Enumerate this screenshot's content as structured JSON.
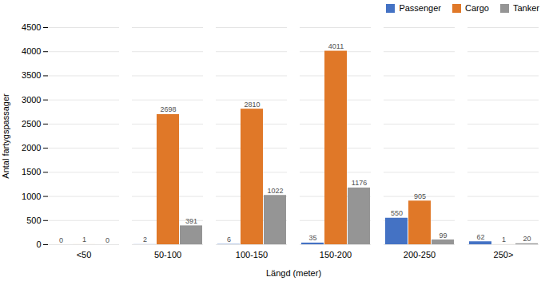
{
  "chart_data": {
    "type": "bar",
    "categories": [
      "<50",
      "50-100",
      "100-150",
      "150-200",
      "200-250",
      "250>"
    ],
    "series": [
      {
        "name": "Passenger",
        "color": "#4472c4",
        "values": [
          0,
          2,
          6,
          35,
          550,
          62
        ]
      },
      {
        "name": "Cargo",
        "color": "#e07828",
        "values": [
          1,
          2698,
          2810,
          4011,
          905,
          1
        ]
      },
      {
        "name": "Tanker",
        "color": "#959595",
        "values": [
          0,
          391,
          1022,
          1176,
          99,
          20
        ]
      }
    ],
    "xlabel": "Längd (meter)",
    "ylabel": "Antal fartygspassager",
    "ylim": [
      0,
      4500
    ],
    "yticks": [
      0,
      500,
      1000,
      1500,
      2000,
      2500,
      3000,
      3500,
      4000,
      4500
    ],
    "grid": true,
    "legend": "upper right",
    "data_labels": true
  }
}
